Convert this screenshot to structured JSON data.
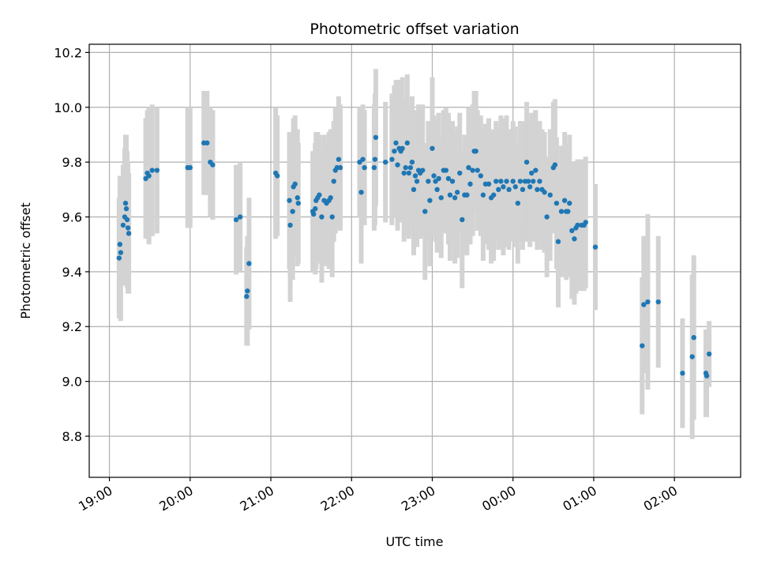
{
  "chart_data": {
    "type": "scatter",
    "title": "Photometric offset variation",
    "xlabel": "UTC time",
    "ylabel": "Photometric offset",
    "x_unit": "hours (UTC, continuing past midnight)",
    "xlim": [
      18.75,
      26.82
    ],
    "ylim": [
      8.65,
      10.23
    ],
    "grid": true,
    "colors": {
      "points": "#1f77b4",
      "errorbars": "#d3d3d3",
      "grid": "#b0b0b0"
    },
    "x_ticks": [
      {
        "value": 19,
        "label": "19:00"
      },
      {
        "value": 20,
        "label": "20:00"
      },
      {
        "value": 21,
        "label": "21:00"
      },
      {
        "value": 22,
        "label": "22:00"
      },
      {
        "value": 23,
        "label": "23:00"
      },
      {
        "value": 24,
        "label": "00:00"
      },
      {
        "value": 25,
        "label": "01:00"
      },
      {
        "value": 26,
        "label": "02:00"
      }
    ],
    "y_ticks": [
      {
        "value": 8.8,
        "label": "8.8"
      },
      {
        "value": 9.0,
        "label": "9.0"
      },
      {
        "value": 9.2,
        "label": "9.2"
      },
      {
        "value": 9.4,
        "label": "9.4"
      },
      {
        "value": 9.6,
        "label": "9.6"
      },
      {
        "value": 9.8,
        "label": "9.8"
      },
      {
        "value": 10.0,
        "label": "10.0"
      },
      {
        "value": 10.2,
        "label": "10.2"
      }
    ],
    "points": [
      {
        "x": 19.12,
        "y": 9.45,
        "err": 0.22
      },
      {
        "x": 19.13,
        "y": 9.5,
        "err": 0.25
      },
      {
        "x": 19.14,
        "y": 9.47,
        "err": 0.25
      },
      {
        "x": 19.17,
        "y": 9.57,
        "err": 0.22
      },
      {
        "x": 19.19,
        "y": 9.6,
        "err": 0.25
      },
      {
        "x": 19.2,
        "y": 9.65,
        "err": 0.25
      },
      {
        "x": 19.21,
        "y": 9.63,
        "err": 0.27
      },
      {
        "x": 19.22,
        "y": 9.59,
        "err": 0.25
      },
      {
        "x": 19.23,
        "y": 9.56,
        "err": 0.24
      },
      {
        "x": 19.24,
        "y": 9.54,
        "err": 0.22
      },
      {
        "x": 19.45,
        "y": 9.74,
        "err": 0.22
      },
      {
        "x": 19.47,
        "y": 9.76,
        "err": 0.23
      },
      {
        "x": 19.49,
        "y": 9.75,
        "err": 0.25
      },
      {
        "x": 19.53,
        "y": 9.77,
        "err": 0.24
      },
      {
        "x": 19.59,
        "y": 9.77,
        "err": 0.23
      },
      {
        "x": 19.97,
        "y": 9.78,
        "err": 0.22
      },
      {
        "x": 20.0,
        "y": 9.78,
        "err": 0.22
      },
      {
        "x": 20.17,
        "y": 9.87,
        "err": 0.19
      },
      {
        "x": 20.21,
        "y": 9.87,
        "err": 0.19
      },
      {
        "x": 20.25,
        "y": 9.8,
        "err": 0.2
      },
      {
        "x": 20.28,
        "y": 9.79,
        "err": 0.2
      },
      {
        "x": 20.57,
        "y": 9.59,
        "err": 0.2
      },
      {
        "x": 20.62,
        "y": 9.6,
        "err": 0.2
      },
      {
        "x": 20.7,
        "y": 9.31,
        "err": 0.18
      },
      {
        "x": 20.71,
        "y": 9.33,
        "err": 0.2
      },
      {
        "x": 20.73,
        "y": 9.43,
        "err": 0.24
      },
      {
        "x": 21.06,
        "y": 9.76,
        "err": 0.24
      },
      {
        "x": 21.08,
        "y": 9.75,
        "err": 0.22
      },
      {
        "x": 21.23,
        "y": 9.66,
        "err": 0.25
      },
      {
        "x": 21.24,
        "y": 9.57,
        "err": 0.28
      },
      {
        "x": 21.27,
        "y": 9.62,
        "err": 0.25
      },
      {
        "x": 21.28,
        "y": 9.71,
        "err": 0.25
      },
      {
        "x": 21.3,
        "y": 9.72,
        "err": 0.25
      },
      {
        "x": 21.33,
        "y": 9.67,
        "err": 0.25
      },
      {
        "x": 21.34,
        "y": 9.65,
        "err": 0.22
      },
      {
        "x": 21.52,
        "y": 9.62,
        "err": 0.22
      },
      {
        "x": 21.53,
        "y": 9.61,
        "err": 0.21
      },
      {
        "x": 21.55,
        "y": 9.63,
        "err": 0.24
      },
      {
        "x": 21.56,
        "y": 9.66,
        "err": 0.25
      },
      {
        "x": 21.58,
        "y": 9.67,
        "err": 0.24
      },
      {
        "x": 21.6,
        "y": 9.68,
        "err": 0.22
      },
      {
        "x": 21.63,
        "y": 9.6,
        "err": 0.24
      },
      {
        "x": 21.66,
        "y": 9.66,
        "err": 0.24
      },
      {
        "x": 21.69,
        "y": 9.65,
        "err": 0.22
      },
      {
        "x": 21.72,
        "y": 9.66,
        "err": 0.25
      },
      {
        "x": 21.74,
        "y": 9.67,
        "err": 0.25
      },
      {
        "x": 21.76,
        "y": 9.6,
        "err": 0.22
      },
      {
        "x": 21.78,
        "y": 9.73,
        "err": 0.22
      },
      {
        "x": 21.8,
        "y": 9.77,
        "err": 0.23
      },
      {
        "x": 21.82,
        "y": 9.78,
        "err": 0.22
      },
      {
        "x": 21.84,
        "y": 9.81,
        "err": 0.23
      },
      {
        "x": 21.86,
        "y": 9.78,
        "err": 0.23
      },
      {
        "x": 22.1,
        "y": 9.8,
        "err": 0.2
      },
      {
        "x": 22.12,
        "y": 9.69,
        "err": 0.26
      },
      {
        "x": 22.14,
        "y": 9.81,
        "err": 0.2
      },
      {
        "x": 22.16,
        "y": 9.78,
        "err": 0.21
      },
      {
        "x": 22.28,
        "y": 9.78,
        "err": 0.23
      },
      {
        "x": 22.29,
        "y": 9.81,
        "err": 0.24
      },
      {
        "x": 22.3,
        "y": 9.89,
        "err": 0.25
      },
      {
        "x": 22.42,
        "y": 9.8,
        "err": 0.22
      },
      {
        "x": 22.5,
        "y": 9.81,
        "err": 0.24
      },
      {
        "x": 22.53,
        "y": 9.84,
        "err": 0.24
      },
      {
        "x": 22.55,
        "y": 9.87,
        "err": 0.23
      },
      {
        "x": 22.57,
        "y": 9.79,
        "err": 0.24
      },
      {
        "x": 22.59,
        "y": 9.85,
        "err": 0.25
      },
      {
        "x": 22.61,
        "y": 9.84,
        "err": 0.26
      },
      {
        "x": 22.63,
        "y": 9.85,
        "err": 0.26
      },
      {
        "x": 22.65,
        "y": 9.76,
        "err": 0.25
      },
      {
        "x": 22.67,
        "y": 9.78,
        "err": 0.25
      },
      {
        "x": 22.69,
        "y": 9.87,
        "err": 0.25
      },
      {
        "x": 22.71,
        "y": 9.76,
        "err": 0.24
      },
      {
        "x": 22.73,
        "y": 9.78,
        "err": 0.22
      },
      {
        "x": 22.75,
        "y": 9.8,
        "err": 0.24
      },
      {
        "x": 22.77,
        "y": 9.7,
        "err": 0.24
      },
      {
        "x": 22.79,
        "y": 9.75,
        "err": 0.24
      },
      {
        "x": 22.81,
        "y": 9.73,
        "err": 0.24
      },
      {
        "x": 22.83,
        "y": 9.77,
        "err": 0.24
      },
      {
        "x": 22.85,
        "y": 9.76,
        "err": 0.24
      },
      {
        "x": 22.88,
        "y": 9.77,
        "err": 0.24
      },
      {
        "x": 22.91,
        "y": 9.62,
        "err": 0.25
      },
      {
        "x": 22.95,
        "y": 9.73,
        "err": 0.22
      },
      {
        "x": 22.97,
        "y": 9.66,
        "err": 0.24
      },
      {
        "x": 23.0,
        "y": 9.85,
        "err": 0.26
      },
      {
        "x": 23.02,
        "y": 9.75,
        "err": 0.22
      },
      {
        "x": 23.04,
        "y": 9.73,
        "err": 0.22
      },
      {
        "x": 23.06,
        "y": 9.7,
        "err": 0.23
      },
      {
        "x": 23.08,
        "y": 9.74,
        "err": 0.24
      },
      {
        "x": 23.11,
        "y": 9.67,
        "err": 0.22
      },
      {
        "x": 23.14,
        "y": 9.77,
        "err": 0.22
      },
      {
        "x": 23.17,
        "y": 9.77,
        "err": 0.23
      },
      {
        "x": 23.2,
        "y": 9.74,
        "err": 0.24
      },
      {
        "x": 23.22,
        "y": 9.68,
        "err": 0.24
      },
      {
        "x": 23.25,
        "y": 9.73,
        "err": 0.22
      },
      {
        "x": 23.28,
        "y": 9.67,
        "err": 0.24
      },
      {
        "x": 23.31,
        "y": 9.69,
        "err": 0.24
      },
      {
        "x": 23.34,
        "y": 9.76,
        "err": 0.22
      },
      {
        "x": 23.37,
        "y": 9.59,
        "err": 0.25
      },
      {
        "x": 23.4,
        "y": 9.68,
        "err": 0.22
      },
      {
        "x": 23.43,
        "y": 9.68,
        "err": 0.22
      },
      {
        "x": 23.45,
        "y": 9.78,
        "err": 0.22
      },
      {
        "x": 23.47,
        "y": 9.72,
        "err": 0.22
      },
      {
        "x": 23.5,
        "y": 9.77,
        "err": 0.24
      },
      {
        "x": 23.52,
        "y": 9.84,
        "err": 0.22
      },
      {
        "x": 23.54,
        "y": 9.84,
        "err": 0.22
      },
      {
        "x": 23.56,
        "y": 9.77,
        "err": 0.22
      },
      {
        "x": 23.6,
        "y": 9.75,
        "err": 0.22
      },
      {
        "x": 23.63,
        "y": 9.68,
        "err": 0.24
      },
      {
        "x": 23.66,
        "y": 9.72,
        "err": 0.22
      },
      {
        "x": 23.7,
        "y": 9.72,
        "err": 0.24
      },
      {
        "x": 23.73,
        "y": 9.67,
        "err": 0.24
      },
      {
        "x": 23.76,
        "y": 9.68,
        "err": 0.24
      },
      {
        "x": 23.79,
        "y": 9.73,
        "err": 0.22
      },
      {
        "x": 23.82,
        "y": 9.7,
        "err": 0.22
      },
      {
        "x": 23.85,
        "y": 9.73,
        "err": 0.24
      },
      {
        "x": 23.88,
        "y": 9.71,
        "err": 0.25
      },
      {
        "x": 23.92,
        "y": 9.73,
        "err": 0.24
      },
      {
        "x": 23.95,
        "y": 9.7,
        "err": 0.22
      },
      {
        "x": 24.0,
        "y": 9.73,
        "err": 0.22
      },
      {
        "x": 24.03,
        "y": 9.71,
        "err": 0.22
      },
      {
        "x": 24.06,
        "y": 9.65,
        "err": 0.22
      },
      {
        "x": 24.09,
        "y": 9.73,
        "err": 0.22
      },
      {
        "x": 24.12,
        "y": 9.7,
        "err": 0.22
      },
      {
        "x": 24.15,
        "y": 9.73,
        "err": 0.22
      },
      {
        "x": 24.17,
        "y": 9.8,
        "err": 0.22
      },
      {
        "x": 24.19,
        "y": 9.73,
        "err": 0.22
      },
      {
        "x": 24.21,
        "y": 9.71,
        "err": 0.22
      },
      {
        "x": 24.23,
        "y": 9.76,
        "err": 0.22
      },
      {
        "x": 24.25,
        "y": 9.73,
        "err": 0.22
      },
      {
        "x": 24.28,
        "y": 9.77,
        "err": 0.22
      },
      {
        "x": 24.3,
        "y": 9.7,
        "err": 0.22
      },
      {
        "x": 24.33,
        "y": 9.73,
        "err": 0.22
      },
      {
        "x": 24.36,
        "y": 9.7,
        "err": 0.22
      },
      {
        "x": 24.39,
        "y": 9.69,
        "err": 0.22
      },
      {
        "x": 24.42,
        "y": 9.6,
        "err": 0.22
      },
      {
        "x": 24.46,
        "y": 9.68,
        "err": 0.24
      },
      {
        "x": 24.5,
        "y": 9.78,
        "err": 0.24
      },
      {
        "x": 24.52,
        "y": 9.79,
        "err": 0.24
      },
      {
        "x": 24.54,
        "y": 9.65,
        "err": 0.24
      },
      {
        "x": 24.56,
        "y": 9.51,
        "err": 0.24
      },
      {
        "x": 24.6,
        "y": 9.62,
        "err": 0.24
      },
      {
        "x": 24.64,
        "y": 9.66,
        "err": 0.25
      },
      {
        "x": 24.66,
        "y": 9.62,
        "err": 0.25
      },
      {
        "x": 24.68,
        "y": 9.62,
        "err": 0.24
      },
      {
        "x": 24.7,
        "y": 9.65,
        "err": 0.25
      },
      {
        "x": 24.73,
        "y": 9.55,
        "err": 0.25
      },
      {
        "x": 24.76,
        "y": 9.52,
        "err": 0.24
      },
      {
        "x": 24.78,
        "y": 9.56,
        "err": 0.24
      },
      {
        "x": 24.8,
        "y": 9.57,
        "err": 0.24
      },
      {
        "x": 24.85,
        "y": 9.57,
        "err": 0.24
      },
      {
        "x": 24.88,
        "y": 9.57,
        "err": 0.24
      },
      {
        "x": 24.9,
        "y": 9.58,
        "err": 0.24
      },
      {
        "x": 25.02,
        "y": 9.49,
        "err": 0.23
      },
      {
        "x": 25.6,
        "y": 9.13,
        "err": 0.25
      },
      {
        "x": 25.62,
        "y": 9.28,
        "err": 0.25
      },
      {
        "x": 25.67,
        "y": 9.29,
        "err": 0.32
      },
      {
        "x": 25.8,
        "y": 9.29,
        "err": 0.24
      },
      {
        "x": 26.1,
        "y": 9.03,
        "err": 0.2
      },
      {
        "x": 26.22,
        "y": 9.09,
        "err": 0.3
      },
      {
        "x": 26.24,
        "y": 9.16,
        "err": 0.3
      },
      {
        "x": 26.39,
        "y": 9.03,
        "err": 0.16
      },
      {
        "x": 26.4,
        "y": 9.02,
        "err": 0.15
      },
      {
        "x": 26.43,
        "y": 9.1,
        "err": 0.12
      }
    ]
  }
}
